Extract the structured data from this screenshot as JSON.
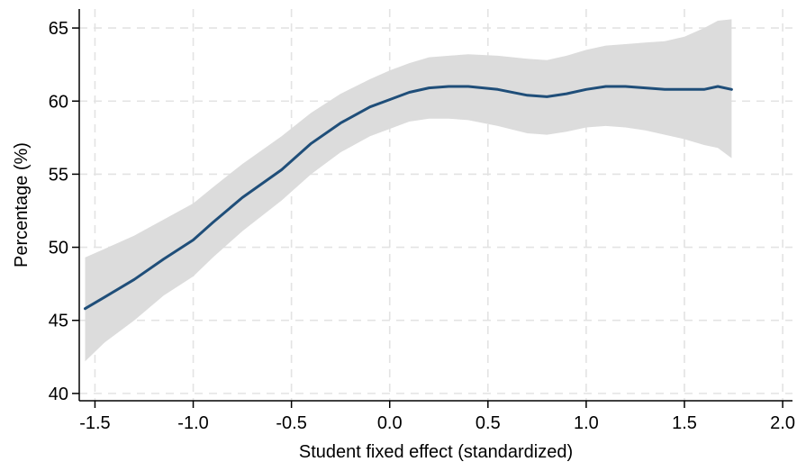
{
  "chart_data": {
    "type": "line",
    "title": "",
    "xlabel": "Student fixed effect (standardized)",
    "ylabel": "Percentage (%)",
    "xlim": [
      -1.58,
      2.05
    ],
    "ylim": [
      39.5,
      66.3
    ],
    "xticks": [
      -1.5,
      -1.0,
      -0.5,
      0.0,
      0.5,
      1.0,
      1.5,
      2.0
    ],
    "xtick_labels": [
      "-1.5",
      "-1.0",
      "-0.5",
      "0.0",
      "0.5",
      "1.0",
      "1.5",
      "2.0"
    ],
    "yticks": [
      40,
      45,
      50,
      55,
      60,
      65
    ],
    "ytick_labels": [
      "40",
      "45",
      "50",
      "55",
      "60",
      "65"
    ],
    "grid": true,
    "colors": {
      "line": "#1f4e79",
      "band": "#dcdcdc"
    },
    "series": [
      {
        "x": [
          -1.55,
          -1.45,
          -1.3,
          -1.15,
          -1.0,
          -0.9,
          -0.75,
          -0.55,
          -0.4,
          -0.25,
          -0.1,
          0.0,
          0.1,
          0.2,
          0.3,
          0.4,
          0.55,
          0.7,
          0.8,
          0.9,
          1.0,
          1.1,
          1.2,
          1.3,
          1.4,
          1.5,
          1.6,
          1.67,
          1.74
        ],
        "y": [
          45.8,
          46.6,
          47.8,
          49.2,
          50.5,
          51.7,
          53.4,
          55.3,
          57.1,
          58.5,
          59.6,
          60.1,
          60.6,
          60.9,
          61.0,
          61.0,
          60.8,
          60.4,
          60.3,
          60.5,
          60.8,
          61.0,
          61.0,
          60.9,
          60.8,
          60.8,
          60.8,
          61.0,
          60.8
        ],
        "lower": [
          42.2,
          43.5,
          45.0,
          46.7,
          48.0,
          49.3,
          51.1,
          53.2,
          55.0,
          56.5,
          57.6,
          58.1,
          58.6,
          58.8,
          58.8,
          58.7,
          58.3,
          57.8,
          57.7,
          57.9,
          58.2,
          58.3,
          58.2,
          58.0,
          57.7,
          57.4,
          57.0,
          56.8,
          56.1
        ],
        "upper": [
          49.3,
          49.9,
          50.8,
          51.9,
          53.0,
          54.1,
          55.7,
          57.6,
          59.2,
          60.5,
          61.5,
          62.1,
          62.6,
          63.0,
          63.1,
          63.2,
          63.1,
          62.9,
          62.8,
          63.1,
          63.5,
          63.8,
          63.9,
          64.0,
          64.1,
          64.4,
          65.0,
          65.5,
          65.6
        ]
      }
    ]
  }
}
